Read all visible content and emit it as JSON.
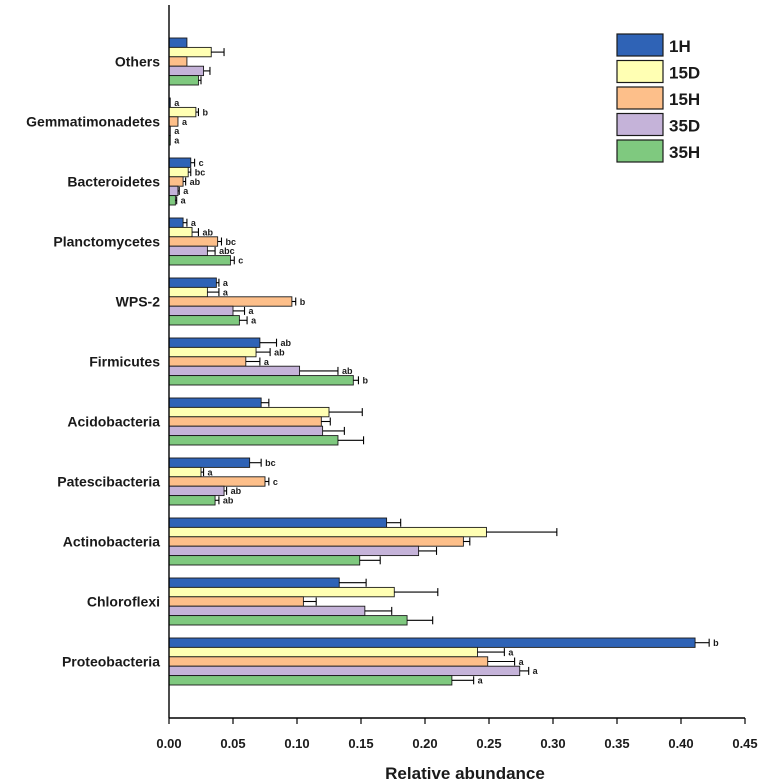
{
  "chart_data": {
    "type": "bar",
    "orientation": "horizontal",
    "title": "",
    "xlabel": "Relative abundance",
    "ylabel": "",
    "xlim": [
      0,
      0.45
    ],
    "x_ticks": [
      "0.00",
      "0.05",
      "0.10",
      "0.15",
      "0.20",
      "0.25",
      "0.30",
      "0.35",
      "0.40",
      "0.45"
    ],
    "x_tick_values": [
      0,
      0.05,
      0.1,
      0.15,
      0.2,
      0.25,
      0.3,
      0.35,
      0.4,
      0.45
    ],
    "categories": [
      "Others",
      "Gemmatimonadetes",
      "Bacteroidetes",
      "Planctomycetes",
      "WPS-2",
      "Firmicutes",
      "Acidobacteria",
      "Patescibacteria",
      "Actinobacteria",
      "Chloroflexi",
      "Proteobacteria"
    ],
    "legend_position": "top-right",
    "series": [
      {
        "name": "1H",
        "color": "#2f63b6",
        "values": [
          0.014,
          0.001,
          0.017,
          0.011,
          0.037,
          0.071,
          0.072,
          0.063,
          0.17,
          0.133,
          0.411
        ],
        "errors": [
          0.0,
          0.0,
          0.003,
          0.003,
          0.002,
          0.013,
          0.006,
          0.009,
          0.011,
          0.021,
          0.011
        ],
        "labels": [
          "",
          "a",
          "c",
          "a",
          "a",
          "ab",
          "",
          "bc",
          "",
          "",
          "b"
        ]
      },
      {
        "name": "15D",
        "color": "#ffffb3",
        "values": [
          0.033,
          0.021,
          0.015,
          0.018,
          0.03,
          0.068,
          0.125,
          0.025,
          0.248,
          0.176,
          0.241
        ],
        "errors": [
          0.01,
          0.002,
          0.002,
          0.005,
          0.009,
          0.011,
          0.026,
          0.002,
          0.055,
          0.034,
          0.021
        ],
        "labels": [
          "",
          "b",
          "bc",
          "ab",
          "a",
          "ab",
          "",
          "a",
          "",
          "",
          "a"
        ]
      },
      {
        "name": "15H",
        "color": "#fdbf8a",
        "values": [
          0.014,
          0.007,
          0.011,
          0.038,
          0.096,
          0.06,
          0.119,
          0.075,
          0.23,
          0.105,
          0.249
        ],
        "errors": [
          0.0,
          0.0,
          0.002,
          0.003,
          0.003,
          0.011,
          0.007,
          0.003,
          0.005,
          0.01,
          0.021
        ],
        "labels": [
          "",
          "a",
          "ab",
          "bc",
          "b",
          "a",
          "",
          "c",
          "",
          "",
          "a"
        ]
      },
      {
        "name": "35D",
        "color": "#c5b3d9",
        "values": [
          0.027,
          0.001,
          0.007,
          0.03,
          0.05,
          0.102,
          0.12,
          0.043,
          0.195,
          0.153,
          0.274
        ],
        "errors": [
          0.005,
          0.0,
          0.001,
          0.006,
          0.009,
          0.03,
          0.017,
          0.002,
          0.014,
          0.021,
          0.007
        ],
        "labels": [
          "",
          "a",
          "a",
          "abc",
          "a",
          "ab",
          "",
          "ab",
          "",
          "",
          "a"
        ]
      },
      {
        "name": "35H",
        "color": "#7fc97f",
        "values": [
          0.023,
          0.001,
          0.005,
          0.048,
          0.055,
          0.144,
          0.132,
          0.036,
          0.149,
          0.186,
          0.221
        ],
        "errors": [
          0.002,
          0.0,
          0.001,
          0.003,
          0.006,
          0.004,
          0.02,
          0.003,
          0.016,
          0.02,
          0.017
        ],
        "labels": [
          "",
          "a",
          "a",
          "c",
          "a",
          "b",
          "",
          "ab",
          "",
          "",
          "a"
        ]
      }
    ]
  }
}
